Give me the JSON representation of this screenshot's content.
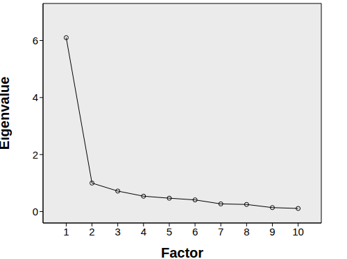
{
  "chart_data": {
    "type": "line",
    "x_label": "Factor",
    "y_label": "Eigenvalue",
    "x": [
      1,
      2,
      3,
      4,
      5,
      6,
      7,
      8,
      9,
      10
    ],
    "values": [
      6.1,
      1.0,
      0.72,
      0.54,
      0.47,
      0.41,
      0.27,
      0.25,
      0.14,
      0.11
    ],
    "xlim": [
      0.1,
      10.9
    ],
    "xticks": [
      1,
      2,
      3,
      4,
      5,
      6,
      7,
      8,
      9,
      10
    ],
    "ylim": [
      -0.4,
      7.3
    ],
    "yticks": [
      0,
      2,
      4,
      6
    ],
    "color": "#000000",
    "marker": "circle",
    "line_style": "solid",
    "grid": false
  }
}
